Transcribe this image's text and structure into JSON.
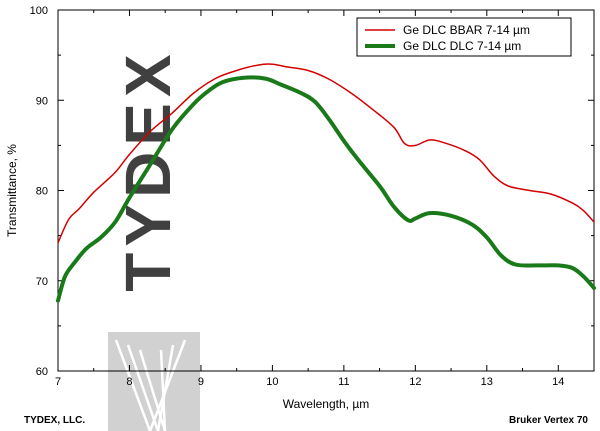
{
  "chart_data": {
    "type": "line",
    "title": "",
    "xlabel": "Wavelength, µm",
    "ylabel": "Transmittance, %",
    "xlim": [
      7,
      14.5
    ],
    "ylim": [
      60,
      100
    ],
    "xticks": [
      7,
      8,
      9,
      10,
      11,
      12,
      13,
      14
    ],
    "yticks": [
      60,
      70,
      80,
      90,
      100
    ],
    "grid": false,
    "legend_position": "top-right",
    "series": [
      {
        "name": "Ge DLC BBAR 7-14 µm",
        "color": "#d40000",
        "points": [
          [
            7.0,
            74.2
          ],
          [
            7.15,
            76.8
          ],
          [
            7.3,
            78.0
          ],
          [
            7.5,
            79.8
          ],
          [
            7.8,
            82.0
          ],
          [
            8.0,
            84.0
          ],
          [
            8.3,
            86.6
          ],
          [
            8.6,
            88.6
          ],
          [
            8.9,
            90.8
          ],
          [
            9.2,
            92.4
          ],
          [
            9.5,
            93.3
          ],
          [
            9.8,
            93.9
          ],
          [
            10.0,
            94.0
          ],
          [
            10.2,
            93.7
          ],
          [
            10.5,
            93.3
          ],
          [
            10.8,
            92.3
          ],
          [
            11.1,
            90.8
          ],
          [
            11.4,
            89.0
          ],
          [
            11.7,
            87.0
          ],
          [
            11.85,
            85.2
          ],
          [
            12.0,
            85.0
          ],
          [
            12.2,
            85.6
          ],
          [
            12.4,
            85.3
          ],
          [
            12.7,
            84.4
          ],
          [
            12.9,
            83.4
          ],
          [
            13.1,
            81.6
          ],
          [
            13.3,
            80.5
          ],
          [
            13.6,
            80.0
          ],
          [
            13.9,
            79.6
          ],
          [
            14.2,
            78.6
          ],
          [
            14.35,
            77.8
          ],
          [
            14.5,
            76.5
          ]
        ]
      },
      {
        "name": "Ge DLC DLC 7-14 µm",
        "color": "#1a7a1a",
        "points": [
          [
            7.0,
            67.8
          ],
          [
            7.1,
            70.5
          ],
          [
            7.25,
            72.2
          ],
          [
            7.4,
            73.6
          ],
          [
            7.6,
            74.8
          ],
          [
            7.8,
            76.5
          ],
          [
            8.0,
            79.2
          ],
          [
            8.3,
            83.0
          ],
          [
            8.6,
            86.8
          ],
          [
            8.9,
            89.6
          ],
          [
            9.1,
            91.0
          ],
          [
            9.3,
            92.0
          ],
          [
            9.6,
            92.5
          ],
          [
            9.9,
            92.4
          ],
          [
            10.1,
            91.8
          ],
          [
            10.4,
            90.8
          ],
          [
            10.6,
            89.8
          ],
          [
            10.8,
            87.8
          ],
          [
            11.0,
            85.5
          ],
          [
            11.2,
            83.4
          ],
          [
            11.5,
            80.5
          ],
          [
            11.7,
            78.2
          ],
          [
            11.9,
            76.7
          ],
          [
            12.0,
            76.9
          ],
          [
            12.2,
            77.5
          ],
          [
            12.5,
            77.2
          ],
          [
            12.8,
            76.2
          ],
          [
            13.0,
            74.8
          ],
          [
            13.2,
            72.8
          ],
          [
            13.4,
            71.8
          ],
          [
            13.7,
            71.7
          ],
          [
            14.0,
            71.7
          ],
          [
            14.2,
            71.4
          ],
          [
            14.35,
            70.5
          ],
          [
            14.5,
            69.2
          ]
        ]
      }
    ],
    "footer_left": "TYDEX, LLC.",
    "footer_right": "Bruker Vertex 70"
  },
  "watermark": {
    "text": "TYDEX",
    "color": "#bdbdbd"
  }
}
